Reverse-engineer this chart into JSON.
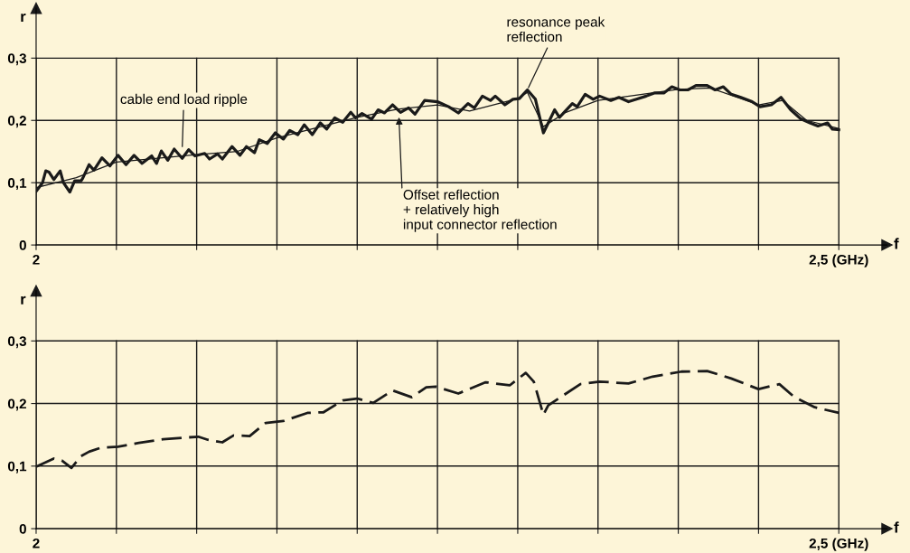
{
  "chart_data": [
    {
      "type": "line",
      "xlabel": "f",
      "ylabel": "r",
      "xlim": [
        2.0,
        2.53
      ],
      "ylim": [
        0,
        0.38
      ],
      "xticks": [
        {
          "value": 2.0,
          "label": "2"
        },
        {
          "value": 2.05,
          "label": null
        },
        {
          "value": 2.1,
          "label": null
        },
        {
          "value": 2.15,
          "label": null
        },
        {
          "value": 2.2,
          "label": null
        },
        {
          "value": 2.25,
          "label": null
        },
        {
          "value": 2.3,
          "label": null
        },
        {
          "value": 2.35,
          "label": null
        },
        {
          "value": 2.4,
          "label": null
        },
        {
          "value": 2.45,
          "label": null
        },
        {
          "value": 2.5,
          "label": "2,5 (GHz)"
        }
      ],
      "yticks": [
        {
          "value": 0,
          "label": "0"
        },
        {
          "value": 0.1,
          "label": "0,1"
        },
        {
          "value": 0.2,
          "label": "0,2"
        },
        {
          "value": 0.3,
          "label": "0,3"
        }
      ],
      "grid": true,
      "marker": "none",
      "series": [
        {
          "color": "#1a1a1a",
          "line_style": "solid",
          "x": [
            2.0,
            2.004,
            2.006,
            2.008,
            2.011,
            2.015,
            2.017,
            2.021,
            2.024,
            2.028,
            2.029,
            2.033,
            2.036,
            2.041,
            2.046,
            2.051,
            2.056,
            2.061,
            2.066,
            2.072,
            2.075,
            2.078,
            2.082,
            2.086,
            2.091,
            2.095,
            2.099,
            2.105,
            2.108,
            2.113,
            2.116,
            2.122,
            2.127,
            2.131,
            2.136,
            2.139,
            2.144,
            2.149,
            2.154,
            2.158,
            2.163,
            2.167,
            2.172,
            2.177,
            2.181,
            2.186,
            2.191,
            2.196,
            2.199,
            2.203,
            2.209,
            2.213,
            2.217,
            2.222,
            2.227,
            2.232,
            2.236,
            2.242,
            2.25,
            2.257,
            2.263,
            2.269,
            2.273,
            2.278,
            2.283,
            2.286,
            2.292,
            2.297,
            2.301,
            2.306,
            2.311,
            2.316,
            2.323,
            2.326,
            2.334,
            2.337,
            2.342,
            2.347,
            2.351,
            2.358,
            2.363,
            2.369,
            2.374,
            2.38,
            2.385,
            2.391,
            2.396,
            2.401,
            2.406,
            2.411,
            2.418,
            2.423,
            2.428,
            2.433,
            2.439,
            2.446,
            2.451,
            2.458,
            2.464,
            2.47,
            2.476,
            2.482,
            2.487,
            2.493,
            2.496,
            2.5
          ],
          "values": [
            0.086,
            0.1,
            0.119,
            0.117,
            0.105,
            0.119,
            0.1,
            0.085,
            0.103,
            0.103,
            0.107,
            0.129,
            0.12,
            0.14,
            0.127,
            0.144,
            0.129,
            0.144,
            0.131,
            0.143,
            0.131,
            0.151,
            0.136,
            0.154,
            0.139,
            0.153,
            0.143,
            0.147,
            0.138,
            0.146,
            0.138,
            0.158,
            0.144,
            0.158,
            0.148,
            0.169,
            0.163,
            0.18,
            0.17,
            0.184,
            0.177,
            0.193,
            0.177,
            0.196,
            0.186,
            0.204,
            0.197,
            0.213,
            0.204,
            0.211,
            0.202,
            0.217,
            0.212,
            0.225,
            0.213,
            0.22,
            0.21,
            0.232,
            0.23,
            0.222,
            0.212,
            0.227,
            0.22,
            0.239,
            0.232,
            0.239,
            0.225,
            0.234,
            0.235,
            0.249,
            0.234,
            0.18,
            0.217,
            0.205,
            0.227,
            0.222,
            0.242,
            0.234,
            0.239,
            0.232,
            0.237,
            0.23,
            0.234,
            0.239,
            0.244,
            0.244,
            0.254,
            0.249,
            0.249,
            0.256,
            0.256,
            0.249,
            0.254,
            0.242,
            0.237,
            0.23,
            0.222,
            0.225,
            0.237,
            0.217,
            0.203,
            0.196,
            0.191,
            0.196,
            0.186,
            0.185
          ]
        },
        {
          "color": "#1a1a1a",
          "line_style": "solid",
          "x": [
            2.0,
            2.025,
            2.05,
            2.1,
            2.125,
            2.15,
            2.2,
            2.225,
            2.25,
            2.27,
            2.3,
            2.306,
            2.316,
            2.33,
            2.35,
            2.4,
            2.42,
            2.45,
            2.465,
            2.48,
            2.5
          ],
          "values": [
            0.092,
            0.108,
            0.133,
            0.145,
            0.15,
            0.172,
            0.205,
            0.218,
            0.225,
            0.215,
            0.235,
            0.245,
            0.19,
            0.213,
            0.232,
            0.25,
            0.252,
            0.225,
            0.232,
            0.2,
            0.187
          ]
        }
      ],
      "annotations": [
        {
          "text": "cable end load ripple",
          "x": 2.091,
          "y": 0.154
        },
        {
          "text": "resonance peak\nreflection",
          "x": 2.306,
          "y": 0.249
        },
        {
          "text": "Offset reflection\n+ relatively high\ninput connector reflection",
          "x": 2.226,
          "y": 0.205
        }
      ]
    },
    {
      "type": "line",
      "xlabel": "f",
      "ylabel": "r",
      "xlim": [
        2.0,
        2.53
      ],
      "ylim": [
        0,
        0.38
      ],
      "xticks": [
        {
          "value": 2.0,
          "label": "2"
        },
        {
          "value": 2.05,
          "label": null
        },
        {
          "value": 2.1,
          "label": null
        },
        {
          "value": 2.15,
          "label": null
        },
        {
          "value": 2.2,
          "label": null
        },
        {
          "value": 2.25,
          "label": null
        },
        {
          "value": 2.3,
          "label": null
        },
        {
          "value": 2.35,
          "label": null
        },
        {
          "value": 2.4,
          "label": null
        },
        {
          "value": 2.45,
          "label": null
        },
        {
          "value": 2.5,
          "label": "2,5 (GHz)"
        }
      ],
      "yticks": [
        {
          "value": 0,
          "label": "0"
        },
        {
          "value": 0.1,
          "label": "0,1"
        },
        {
          "value": 0.2,
          "label": "0,2"
        },
        {
          "value": 0.3,
          "label": "0,3"
        }
      ],
      "grid": true,
      "marker": "none",
      "series": [
        {
          "color": "#1a1a1a",
          "line_style": "dashed",
          "x": [
            2.0,
            2.011,
            2.016,
            2.022,
            2.028,
            2.033,
            2.04,
            2.051,
            2.064,
            2.079,
            2.101,
            2.107,
            2.116,
            2.123,
            2.133,
            2.143,
            2.154,
            2.169,
            2.179,
            2.191,
            2.2,
            2.21,
            2.222,
            2.234,
            2.243,
            2.249,
            2.263,
            2.28,
            2.295,
            2.305,
            2.31,
            2.316,
            2.319,
            2.326,
            2.339,
            2.351,
            2.369,
            2.384,
            2.402,
            2.418,
            2.433,
            2.45,
            2.463,
            2.472,
            2.485,
            2.5
          ],
          "values": [
            0.099,
            0.112,
            0.109,
            0.097,
            0.116,
            0.123,
            0.129,
            0.131,
            0.137,
            0.143,
            0.147,
            0.142,
            0.138,
            0.149,
            0.148,
            0.169,
            0.172,
            0.185,
            0.186,
            0.205,
            0.208,
            0.201,
            0.221,
            0.21,
            0.226,
            0.227,
            0.216,
            0.234,
            0.229,
            0.249,
            0.235,
            0.182,
            0.197,
            0.209,
            0.231,
            0.235,
            0.232,
            0.243,
            0.251,
            0.252,
            0.24,
            0.223,
            0.231,
            0.211,
            0.194,
            0.185
          ]
        }
      ]
    }
  ]
}
